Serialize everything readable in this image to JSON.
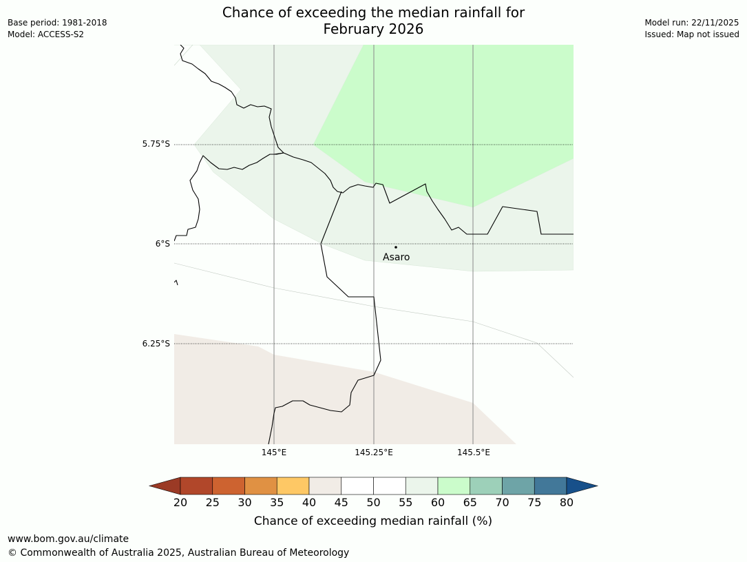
{
  "title": {
    "line1": "Chance of exceeding the median rainfall for",
    "line2": "February 2026"
  },
  "meta_left": {
    "base_period": "Base period: 1981-2018",
    "model": "Model: ACCESS-S2"
  },
  "meta_right": {
    "model_run": "Model run: 22/11/2025",
    "issued": "Issued: Map not issued"
  },
  "map": {
    "latitude_labels": [
      "5.75°S",
      "6°S",
      "6.25°S"
    ],
    "longitude_labels": [
      "145°E",
      "145.25°E",
      "145.5°E"
    ],
    "town": {
      "name": "Asaro"
    },
    "region_colors": {
      "40-45": "#f1ece6",
      "55-60": "#ebf5eb",
      "60-65": "#cbfccb",
      "45-55": "#fcfffc"
    },
    "line_color": "#000000",
    "grid_color": "#888888"
  },
  "colorbar": {
    "ticks": [
      "20",
      "25",
      "30",
      "35",
      "40",
      "45",
      "50",
      "55",
      "60",
      "65",
      "70",
      "75",
      "80"
    ],
    "colors": [
      "#9b3a25",
      "#b1472a",
      "#cd6330",
      "#e09143",
      "#fec865",
      "#f1ece6",
      "#ffffff",
      "#ffffff",
      "#ebf5eb",
      "#cbfccb",
      "#9dd0b9",
      "#6ea4a7",
      "#427899",
      "#17508a"
    ],
    "title": "Chance of exceeding median rainfall (%)"
  },
  "footer": {
    "url": "www.bom.gov.au/climate",
    "copyright": "© Commonwealth of Australia 2025, Australian Bureau of Meteorology"
  }
}
